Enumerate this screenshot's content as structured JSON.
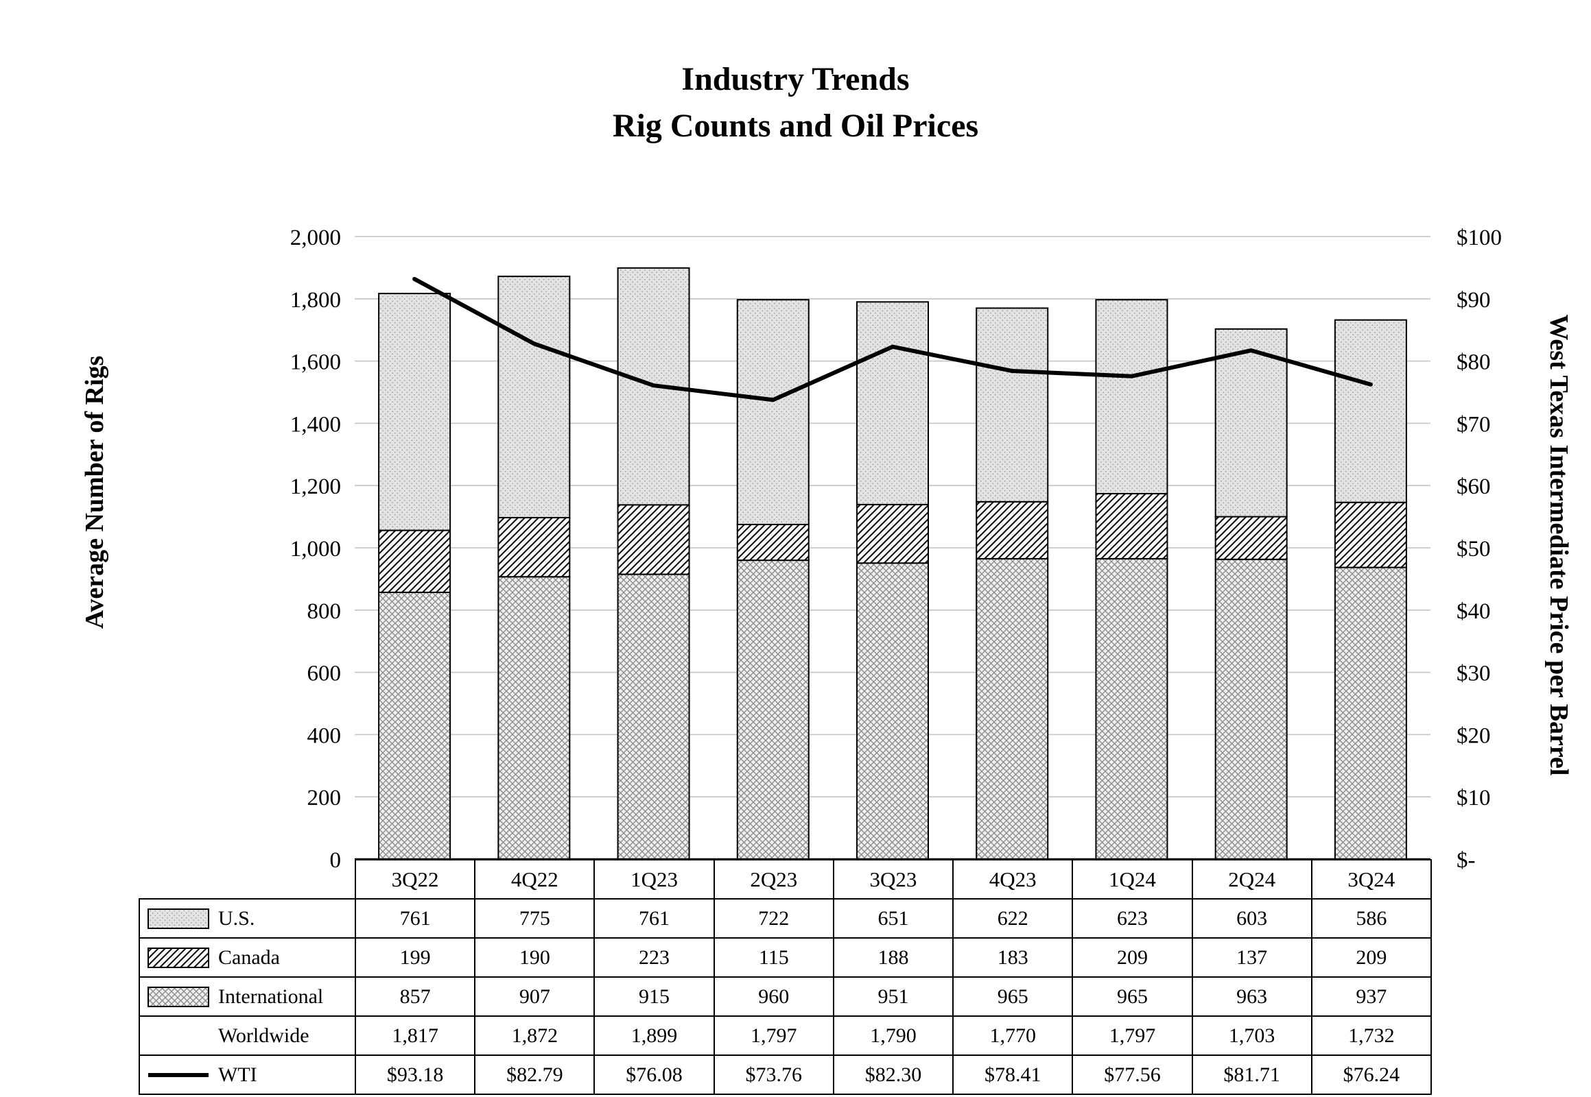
{
  "chart_data": {
    "type": "combo-stacked-bar-line",
    "title_lines": [
      "Industry Trends",
      "Rig Counts and Oil Prices"
    ],
    "categories": [
      "3Q22",
      "4Q22",
      "1Q23",
      "2Q23",
      "3Q23",
      "4Q23",
      "1Q24",
      "2Q24",
      "3Q24"
    ],
    "bar_series": [
      {
        "name": "International",
        "key": "international",
        "pattern_id": "pat-intl",
        "values": [
          857,
          907,
          915,
          960,
          951,
          965,
          965,
          963,
          937
        ]
      },
      {
        "name": "Canada",
        "key": "canada",
        "pattern_id": "pat-canada",
        "values": [
          199,
          190,
          223,
          115,
          188,
          183,
          209,
          137,
          209
        ]
      },
      {
        "name": "U.S.",
        "key": "us",
        "pattern_id": "pat-us",
        "values": [
          761,
          775,
          761,
          722,
          651,
          622,
          623,
          603,
          586
        ]
      }
    ],
    "totals": {
      "name": "Worldwide",
      "values": [
        1817,
        1872,
        1899,
        1797,
        1790,
        1770,
        1797,
        1703,
        1732
      ]
    },
    "line_series": {
      "name": "WTI",
      "axis": "right",
      "color": "#000000",
      "values": [
        93.18,
        82.79,
        76.08,
        73.76,
        82.3,
        78.41,
        77.56,
        81.71,
        76.24
      ]
    },
    "left_axis": {
      "label": "Average Number of Rigs",
      "min": 0,
      "max": 2000,
      "step": 200,
      "tick_labels": [
        "0",
        "200",
        "400",
        "600",
        "800",
        "1,000",
        "1,200",
        "1,400",
        "1,600",
        "1,800",
        "2,000"
      ]
    },
    "right_axis": {
      "label": "West Texas Intermediate Price per Barrel",
      "min": 0,
      "max": 100,
      "step": 10,
      "tick_labels": [
        "$-",
        "$10",
        "$20",
        "$30",
        "$40",
        "$50",
        "$60",
        "$70",
        "$80",
        "$90",
        "$100"
      ]
    },
    "layout": {
      "grid": true,
      "legend": "in-table-below-chart",
      "grid_color": "#c8c8c8"
    }
  },
  "table": {
    "rows": [
      {
        "label": "U.S.",
        "swatch": "pattern",
        "pattern_id": "pat-us",
        "icon": "us-legend-swatch-icon",
        "values": [
          "761",
          "775",
          "761",
          "722",
          "651",
          "622",
          "623",
          "603",
          "586"
        ]
      },
      {
        "label": "Canada",
        "swatch": "pattern",
        "pattern_id": "pat-canada",
        "icon": "canada-legend-swatch-icon",
        "values": [
          "199",
          "190",
          "223",
          "115",
          "188",
          "183",
          "209",
          "137",
          "209"
        ]
      },
      {
        "label": "International",
        "swatch": "pattern",
        "pattern_id": "pat-intl",
        "icon": "international-legend-swatch-icon",
        "values": [
          "857",
          "907",
          "915",
          "960",
          "951",
          "965",
          "965",
          "963",
          "937"
        ]
      },
      {
        "label": "Worldwide",
        "swatch": "none",
        "values": [
          "1,817",
          "1,872",
          "1,899",
          "1,797",
          "1,790",
          "1,770",
          "1,797",
          "1,703",
          "1,732"
        ]
      },
      {
        "label": "WTI",
        "swatch": "line",
        "icon": "wti-line-swatch-icon",
        "values": [
          "$93.18",
          "$82.79",
          "$76.08",
          "$73.76",
          "$82.30",
          "$78.41",
          "$77.56",
          "$81.71",
          "$76.24"
        ]
      }
    ]
  }
}
